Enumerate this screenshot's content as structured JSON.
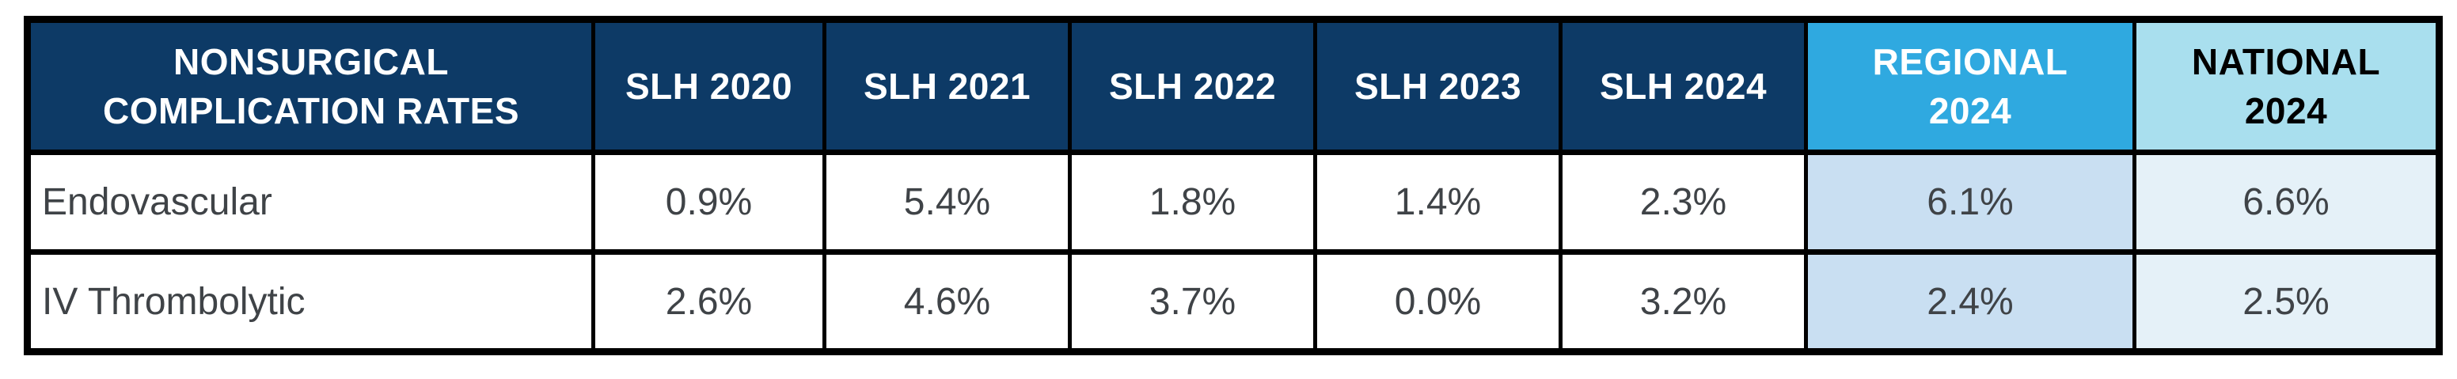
{
  "title_cell": {
    "line1": "NONSURGICAL",
    "line2": "COMPLICATION RATES"
  },
  "header": {
    "slh_columns": [
      "SLH 2020",
      "SLH 2021",
      "SLH 2022",
      "SLH 2023",
      "SLH 2024"
    ],
    "regional": {
      "line1": "REGIONAL",
      "line2": "2024"
    },
    "national": {
      "line1": "NATIONAL",
      "line2": "2024"
    }
  },
  "rows": [
    {
      "label": "Endovascular",
      "slh_values": [
        "0.9%",
        "5.4%",
        "1.8%",
        "1.4%",
        "2.3%"
      ],
      "regional": "6.1%",
      "national": "6.6%"
    },
    {
      "label": "IV Thrombolytic",
      "slh_values": [
        "2.6%",
        "4.6%",
        "3.7%",
        "0.0%",
        "3.2%"
      ],
      "regional": "2.4%",
      "national": "2.5%"
    }
  ],
  "colors": {
    "navy_header_bg": "#0d3a66",
    "regional_header_bg": "#2fa9e0",
    "national_header_bg": "#a9dfee",
    "regional_cell_bg": "#c9dff2",
    "national_cell_bg": "#e5f1f8",
    "border": "#000000",
    "header_text": "#ffffff",
    "national_header_text": "#000000",
    "body_text": "#3f4347"
  },
  "chart_data": {
    "type": "table",
    "title": "NONSURGICAL COMPLICATION RATES",
    "columns": [
      "SLH 2020",
      "SLH 2021",
      "SLH 2022",
      "SLH 2023",
      "SLH 2024",
      "REGIONAL 2024",
      "NATIONAL 2024"
    ],
    "rows": [
      {
        "label": "Endovascular",
        "values_pct": [
          0.9,
          5.4,
          1.8,
          1.4,
          2.3,
          6.1,
          6.6
        ]
      },
      {
        "label": "IV Thrombolytic",
        "values_pct": [
          2.6,
          4.6,
          3.7,
          0.0,
          3.2,
          2.4,
          2.5
        ]
      }
    ],
    "units": "percent",
    "notes_layout": "first column row labels; SLH year columns navy; regional/national columns tinted blue"
  }
}
